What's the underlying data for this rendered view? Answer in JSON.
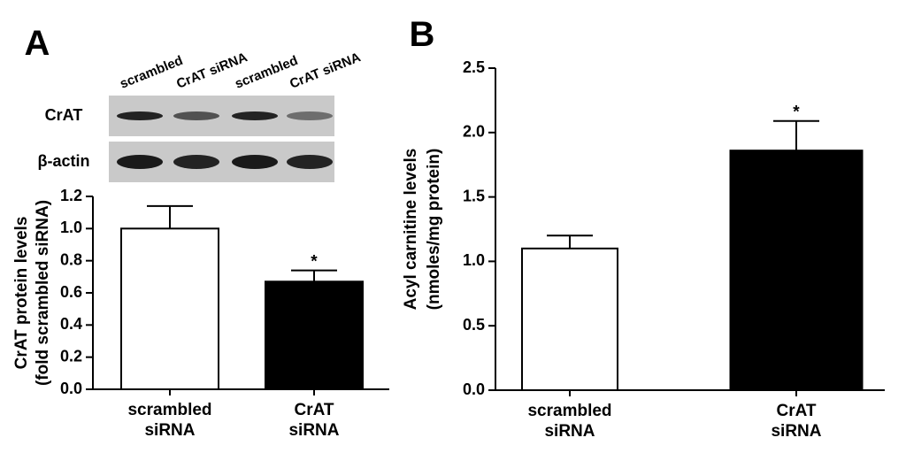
{
  "chart_data": [
    {
      "type": "bar",
      "panel": "A",
      "blot": {
        "lanes": [
          "scrambled",
          "CrAT siRNA",
          "scrambled",
          "CrAT siRNA"
        ],
        "rows": [
          "CrAT",
          "β-actin"
        ]
      },
      "ylabel": [
        "CrAT protein levels",
        "(fold scrambled siRNA)"
      ],
      "categories": [
        [
          "scrambled",
          "siRNA"
        ],
        [
          "CrAT",
          "siRNA"
        ]
      ],
      "values": [
        1.0,
        0.67
      ],
      "errors": [
        0.14,
        0.07
      ],
      "annotations": [
        null,
        "*"
      ],
      "colors": [
        "#ffffff",
        "#000000"
      ],
      "ylim": [
        0,
        1.2
      ],
      "yticks": [
        {
          "value": 0,
          "label": "0.0"
        },
        0.2,
        0.4,
        0.6,
        0.8,
        {
          "value": 1,
          "label": "1.0"
        },
        1.2
      ]
    },
    {
      "type": "bar",
      "panel": "B",
      "ylabel": [
        "Acyl carnitine levels",
        "(nmoles/mg protein)"
      ],
      "categories": [
        [
          "scrambled",
          "siRNA"
        ],
        [
          "CrAT",
          "siRNA"
        ]
      ],
      "values": [
        1.1,
        1.86
      ],
      "errors": [
        0.1,
        0.23
      ],
      "annotations": [
        null,
        "*"
      ],
      "colors": [
        "#ffffff",
        "#000000"
      ],
      "ylim": [
        0,
        2.5
      ],
      "yticks": [
        {
          "value": 0,
          "label": "0.0"
        },
        0.5,
        {
          "value": 1,
          "label": "1.0"
        },
        1.5,
        {
          "value": 2,
          "label": "2.0"
        },
        2.5
      ]
    }
  ]
}
